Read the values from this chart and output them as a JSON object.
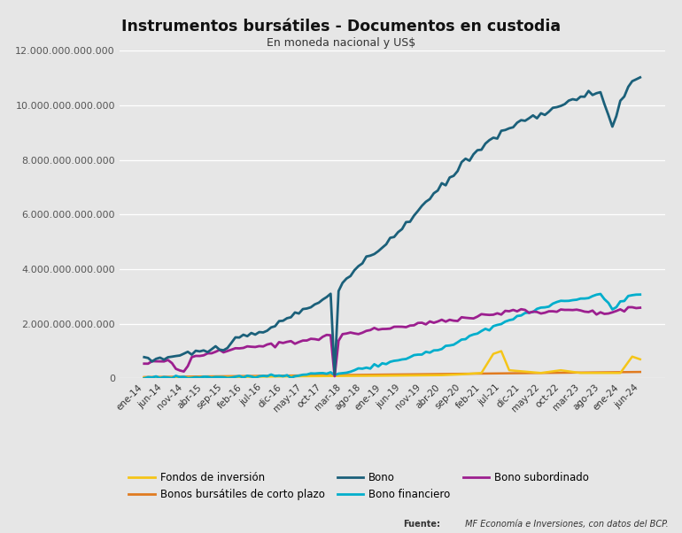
{
  "title": "Instrumentos bursátiles - Documentos en custodia",
  "subtitle": "En moneda nacional y US$",
  "source_bold": "Fuente:",
  "source_rest": " MF Economía e Inversiones, con datos del BCP.",
  "background_color": "#e6e6e6",
  "plot_background": "#e6e6e6",
  "ylim": [
    0,
    12000000000000
  ],
  "yticks": [
    0,
    2000000000000,
    4000000000000,
    6000000000000,
    8000000000000,
    10000000000000,
    12000000000000
  ],
  "x_labels": [
    "ene-14",
    "jun-14",
    "nov-14",
    "abr-15",
    "sep-15",
    "feb-16",
    "jul-16",
    "dic-16",
    "may-17",
    "oct-17",
    "mar-18",
    "ago-18",
    "ene-19",
    "jun-19",
    "nov-19",
    "abr-20",
    "sep-20",
    "feb-21",
    "jul-21",
    "dic-21",
    "may-22",
    "oct-22",
    "mar-23",
    "ago-23",
    "ene-24",
    "jun-24"
  ],
  "series": {
    "fondos": {
      "label": "Fondos de inversión",
      "color": "#f5c518",
      "linewidth": 1.8
    },
    "bonos_cp": {
      "label": "Bonos bursátiles de corto plazo",
      "color": "#e07b20",
      "linewidth": 1.8
    },
    "bono": {
      "label": "Bono",
      "color": "#1b607a",
      "linewidth": 2.0
    },
    "bono_fin": {
      "label": "Bono financiero",
      "color": "#00aecc",
      "linewidth": 2.0
    },
    "bono_sub": {
      "label": "Bono subordinado",
      "color": "#9c1f8f",
      "linewidth": 2.0
    }
  }
}
